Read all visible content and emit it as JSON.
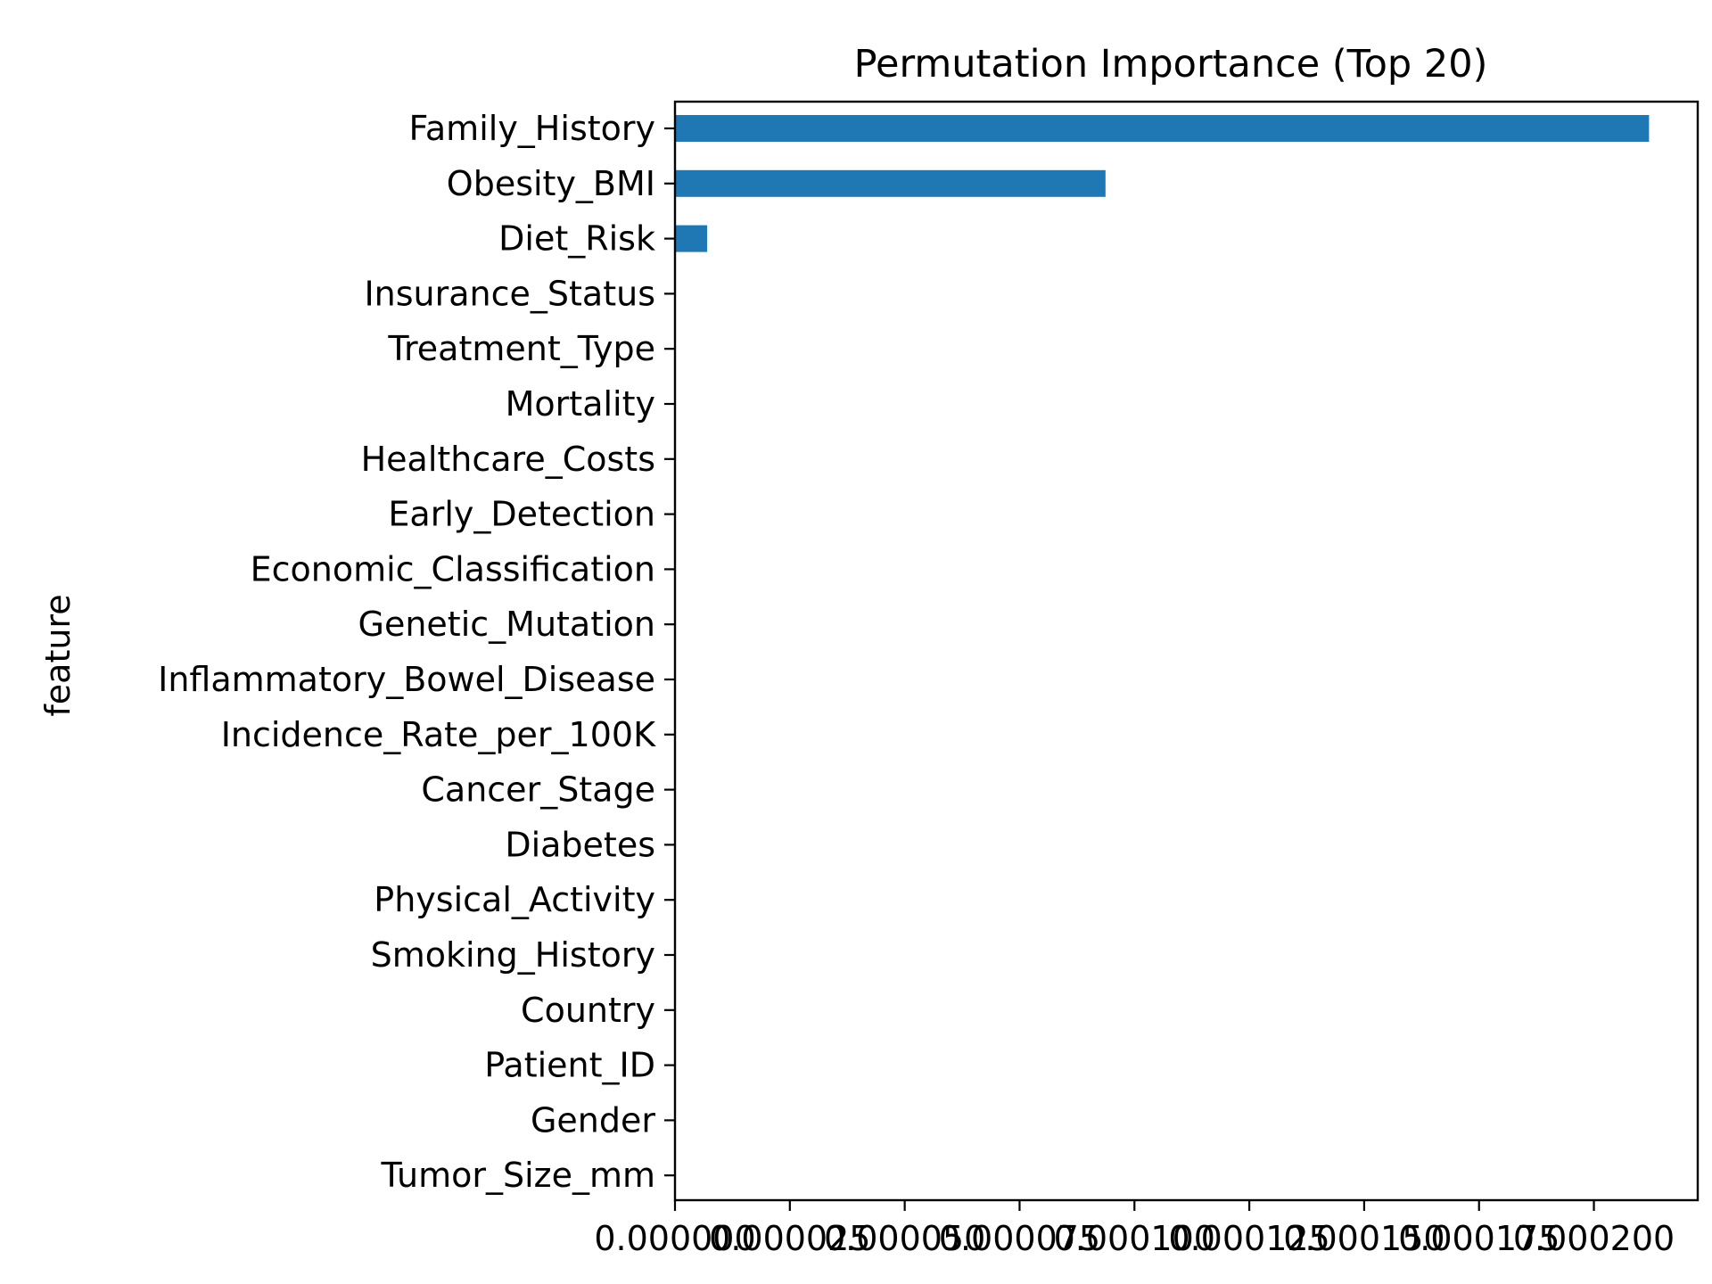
{
  "chart_data": {
    "type": "bar",
    "orientation": "horizontal",
    "title": "Permutation Importance (Top 20)",
    "xlabel": "",
    "ylabel": "feature",
    "categories": [
      "Family_History",
      "Obesity_BMI",
      "Diet_Risk",
      "Insurance_Status",
      "Treatment_Type",
      "Mortality",
      "Healthcare_Costs",
      "Early_Detection",
      "Economic_Classification",
      "Genetic_Mutation",
      "Inflammatory_Bowel_Disease",
      "Incidence_Rate_per_100K",
      "Cancer_Stage",
      "Diabetes",
      "Physical_Activity",
      "Smoking_History",
      "Country",
      "Patient_ID",
      "Gender",
      "Tumor_Size_mm"
    ],
    "values": [
      0.000212,
      9.37e-05,
      7e-06,
      0,
      0,
      0,
      0,
      0,
      0,
      0,
      0,
      0,
      0,
      0,
      0,
      0,
      0,
      0,
      0,
      0
    ],
    "xticks": [
      0.0,
      2.5e-05,
      5e-05,
      7.5e-05,
      0.0001,
      0.000125,
      0.00015,
      0.000175,
      0.0002
    ],
    "xtick_labels": [
      "0.000000",
      "0.000025",
      "0.000050",
      "0.000075",
      "0.000100",
      "0.000125",
      "0.000150",
      "0.000175",
      "0.000200"
    ],
    "xlim": [
      0,
      0.0002226
    ],
    "bar_color": "#1f77b4",
    "grid": false,
    "legend": false
  }
}
